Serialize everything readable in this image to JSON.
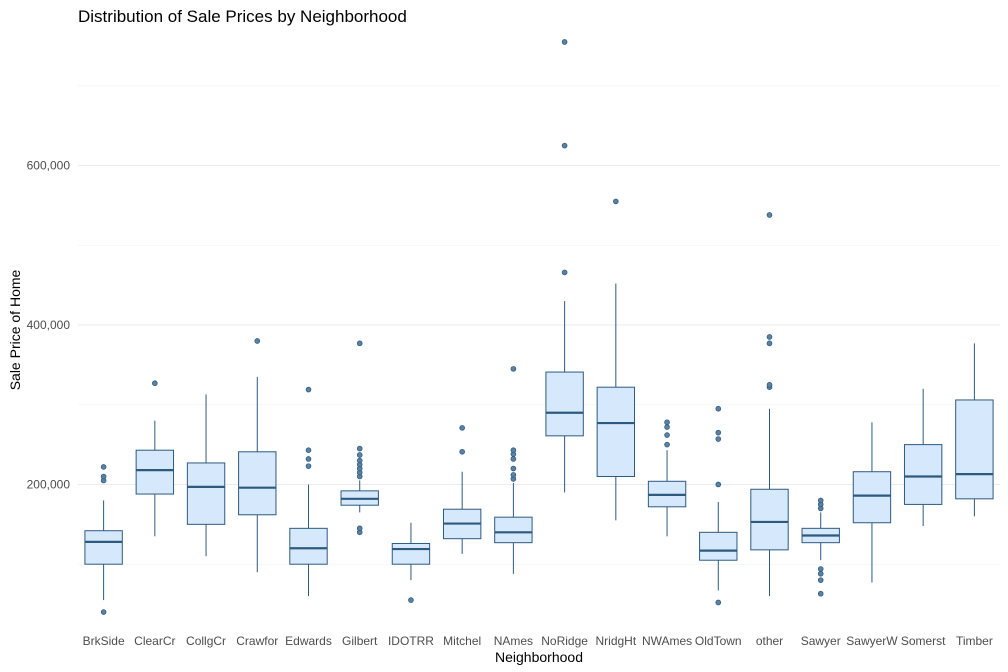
{
  "chart_data": {
    "type": "boxplot",
    "title": "Distribution of Sale Prices by Neighborhood",
    "xlabel": "Neighborhood",
    "ylabel": "Sale Price of Home",
    "ylim": [
      20000,
      770000
    ],
    "yticks": [
      200000,
      400000,
      600000
    ],
    "ytick_labels": [
      "200,000",
      "400,000",
      "600,000"
    ],
    "grid": true,
    "colors": {
      "fill": "#d6e8fb",
      "stroke": "#2e5a80",
      "outlier_fill": "#5b82a3"
    },
    "categories": [
      "BrkSide",
      "ClearCr",
      "CollgCr",
      "Crawfor",
      "Edwards",
      "Gilbert",
      "IDOTRR",
      "Mitchel",
      "NAmes",
      "NoRidge",
      "NridgHt",
      "NWAmes",
      "OldTown",
      "other",
      "Sawyer",
      "SawyerW",
      "Somerst",
      "Timber"
    ],
    "boxes": [
      {
        "category": "BrkSide",
        "whisker_low": 55000,
        "q1": 100000,
        "median": 128000,
        "q3": 142000,
        "whisker_high": 180000,
        "outliers": [
          40000,
          205000,
          210000,
          222000
        ]
      },
      {
        "category": "ClearCr",
        "whisker_low": 135000,
        "q1": 188000,
        "median": 218000,
        "q3": 243000,
        "whisker_high": 280000,
        "outliers": [
          327000
        ]
      },
      {
        "category": "CollgCr",
        "whisker_low": 110000,
        "q1": 150000,
        "median": 197000,
        "q3": 227000,
        "whisker_high": 313000,
        "outliers": []
      },
      {
        "category": "Crawfor",
        "whisker_low": 90000,
        "q1": 162000,
        "median": 196000,
        "q3": 241000,
        "whisker_high": 335000,
        "outliers": [
          380000
        ]
      },
      {
        "category": "Edwards",
        "whisker_low": 60000,
        "q1": 100000,
        "median": 120000,
        "q3": 145000,
        "whisker_high": 200000,
        "outliers": [
          223000,
          232000,
          243000,
          319000
        ]
      },
      {
        "category": "Gilbert",
        "whisker_low": 165000,
        "q1": 174000,
        "median": 182000,
        "q3": 192000,
        "whisker_high": 205000,
        "outliers": [
          140000,
          145000,
          210000,
          215000,
          220000,
          225000,
          230000,
          237000,
          245000,
          377000
        ]
      },
      {
        "category": "IDOTRR",
        "whisker_low": 80000,
        "q1": 100000,
        "median": 119000,
        "q3": 126000,
        "whisker_high": 152000,
        "outliers": [
          55000
        ]
      },
      {
        "category": "Mitchel",
        "whisker_low": 113000,
        "q1": 132000,
        "median": 151000,
        "q3": 169000,
        "whisker_high": 216000,
        "outliers": [
          241000,
          271000
        ]
      },
      {
        "category": "NAmes",
        "whisker_low": 88000,
        "q1": 127000,
        "median": 140000,
        "q3": 159000,
        "whisker_high": 202000,
        "outliers": [
          207000,
          212000,
          220000,
          232000,
          238000,
          243000,
          345000
        ]
      },
      {
        "category": "NoRidge",
        "whisker_low": 190000,
        "q1": 261000,
        "median": 290000,
        "q3": 341000,
        "whisker_high": 430000,
        "outliers": [
          466000,
          625000,
          755000
        ]
      },
      {
        "category": "NridgHt",
        "whisker_low": 155000,
        "q1": 210000,
        "median": 277000,
        "q3": 322000,
        "whisker_high": 452000,
        "outliers": [
          555000
        ]
      },
      {
        "category": "NWAmes",
        "whisker_low": 135000,
        "q1": 172000,
        "median": 187000,
        "q3": 204000,
        "whisker_high": 243000,
        "outliers": [
          250000,
          262000,
          272000,
          278000
        ]
      },
      {
        "category": "OldTown",
        "whisker_low": 67000,
        "q1": 105000,
        "median": 117000,
        "q3": 140000,
        "whisker_high": 178000,
        "outliers": [
          52000,
          200000,
          257000,
          265000,
          295000
        ]
      },
      {
        "category": "other",
        "whisker_low": 60000,
        "q1": 118000,
        "median": 153000,
        "q3": 194000,
        "whisker_high": 295000,
        "outliers": [
          322000,
          325000,
          377000,
          385000,
          538000
        ]
      },
      {
        "category": "Sawyer",
        "whisker_low": 105000,
        "q1": 127000,
        "median": 136000,
        "q3": 145000,
        "whisker_high": 165000,
        "outliers": [
          63000,
          80000,
          88000,
          94000,
          170000,
          175000,
          180000
        ]
      },
      {
        "category": "SawyerW",
        "whisker_low": 77000,
        "q1": 152000,
        "median": 186000,
        "q3": 216000,
        "whisker_high": 278000,
        "outliers": []
      },
      {
        "category": "Somerst",
        "whisker_low": 148000,
        "q1": 175000,
        "median": 210000,
        "q3": 250000,
        "whisker_high": 320000,
        "outliers": []
      },
      {
        "category": "Timber",
        "whisker_low": 160000,
        "q1": 182000,
        "median": 213000,
        "q3": 306000,
        "whisker_high": 377000,
        "outliers": []
      }
    ]
  }
}
